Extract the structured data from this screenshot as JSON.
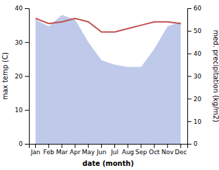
{
  "chart_data": {
    "type": "line",
    "x_label": "date (month)",
    "y_label": "max temp (C)",
    "y2_label": "med. precipitation (kg/m2)",
    "categories": [
      "Jan",
      "Feb",
      "Mar",
      "Apr",
      "May",
      "Jun",
      "Jul",
      "Aug",
      "Sep",
      "Oct",
      "Nov",
      "Dec"
    ],
    "series": [
      {
        "type": "area",
        "axis": "y2",
        "color": "#bfc9ea",
        "values": [
          55,
          52,
          57,
          55,
          45,
          37,
          35,
          34,
          34,
          42,
          52,
          54
        ]
      },
      {
        "type": "line",
        "axis": "y",
        "color": "#c0504d",
        "values": [
          37,
          35.5,
          36,
          37,
          36,
          33,
          33,
          34,
          35,
          36,
          36,
          35.5
        ]
      }
    ],
    "ylim": [
      0,
      40
    ],
    "yticks": [
      0,
      10,
      20,
      30,
      40
    ],
    "y2lim": [
      0,
      60
    ],
    "y2ticks": [
      0,
      10,
      20,
      30,
      40,
      50,
      60
    ]
  }
}
